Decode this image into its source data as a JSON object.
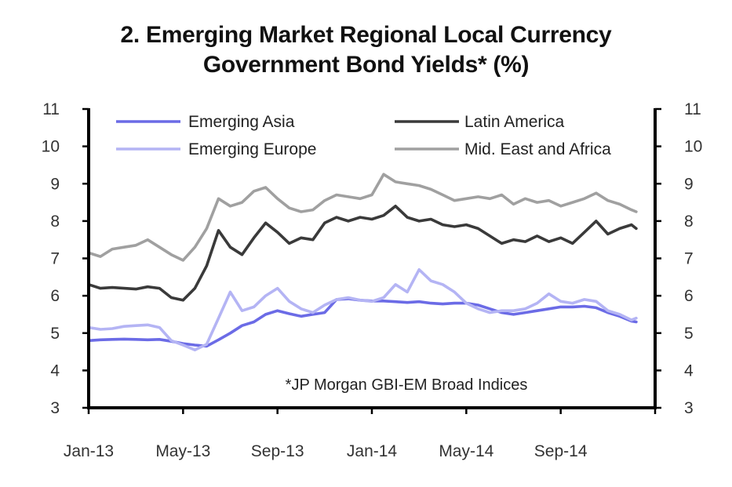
{
  "title_line1": "2. Emerging Market Regional Local Currency",
  "title_line2": "Government Bond Yields* (%)",
  "chart_data": {
    "type": "line",
    "title": "2. Emerging Market Regional Local Currency Government Bond Yields* (%)",
    "xlabel": "",
    "ylabel": "%",
    "ylim": [
      3,
      11
    ],
    "yticks": [
      3,
      4,
      5,
      6,
      7,
      8,
      9,
      10,
      11
    ],
    "ytick_labels": [
      "3",
      "4",
      "5",
      "6",
      "7",
      "8",
      "9",
      "10",
      "11"
    ],
    "x_unit": "months since Jan-13",
    "xlim": [
      0,
      24
    ],
    "xticks": [
      0,
      4,
      8,
      12,
      16,
      20,
      24
    ],
    "xtick_labels": [
      "Jan-13",
      "May-13",
      "Sep-13",
      "Jan-14",
      "May-14",
      "Sep-14",
      ""
    ],
    "grid": false,
    "legend_position": "top",
    "annotation": "*JP Morgan GBI-EM Broad Indices",
    "x": [
      0,
      0.5,
      1,
      1.5,
      2,
      2.5,
      3,
      3.5,
      4,
      4.5,
      5,
      5.5,
      6,
      6.5,
      7,
      7.5,
      8,
      8.5,
      9,
      9.5,
      10,
      10.5,
      11,
      11.5,
      12,
      12.5,
      13,
      13.5,
      14,
      14.5,
      15,
      15.5,
      16,
      16.5,
      17,
      17.5,
      18,
      18.5,
      19,
      19.5,
      20,
      20.5,
      21,
      21.5,
      22,
      22.5,
      23,
      23.2
    ],
    "series": [
      {
        "name": "Emerging Asia",
        "color": "#6b6be6",
        "values": [
          4.8,
          4.82,
          4.83,
          4.84,
          4.83,
          4.82,
          4.83,
          4.78,
          4.72,
          4.68,
          4.65,
          4.82,
          5.0,
          5.2,
          5.3,
          5.5,
          5.6,
          5.52,
          5.45,
          5.5,
          5.55,
          5.9,
          5.92,
          5.88,
          5.86,
          5.86,
          5.84,
          5.82,
          5.84,
          5.8,
          5.78,
          5.8,
          5.8,
          5.75,
          5.65,
          5.55,
          5.5,
          5.55,
          5.6,
          5.65,
          5.7,
          5.7,
          5.72,
          5.68,
          5.55,
          5.45,
          5.32,
          5.3
        ]
      },
      {
        "name": "Latin America",
        "color": "#3a3a3a",
        "values": [
          6.3,
          6.2,
          6.22,
          6.2,
          6.18,
          6.24,
          6.2,
          5.95,
          5.88,
          6.2,
          6.8,
          7.75,
          7.3,
          7.1,
          7.55,
          7.95,
          7.7,
          7.4,
          7.55,
          7.5,
          7.95,
          8.1,
          8.0,
          8.1,
          8.05,
          8.15,
          8.4,
          8.1,
          8.0,
          8.05,
          7.9,
          7.85,
          7.9,
          7.8,
          7.6,
          7.4,
          7.5,
          7.45,
          7.6,
          7.45,
          7.55,
          7.4,
          7.7,
          8.0,
          7.65,
          7.8,
          7.9,
          7.8
        ]
      },
      {
        "name": "Emerging Europe",
        "color": "#b4b4f4",
        "values": [
          5.15,
          5.1,
          5.12,
          5.18,
          5.2,
          5.22,
          5.15,
          4.8,
          4.68,
          4.55,
          4.7,
          5.4,
          6.1,
          5.6,
          5.7,
          6.0,
          6.2,
          5.85,
          5.65,
          5.55,
          5.75,
          5.9,
          5.95,
          5.88,
          5.85,
          5.95,
          6.3,
          6.1,
          6.7,
          6.4,
          6.3,
          6.1,
          5.8,
          5.65,
          5.55,
          5.6,
          5.6,
          5.65,
          5.8,
          6.05,
          5.85,
          5.8,
          5.9,
          5.85,
          5.6,
          5.5,
          5.35,
          5.4
        ]
      },
      {
        "name": "Mid. East and Africa",
        "color": "#a0a0a0",
        "values": [
          7.15,
          7.05,
          7.25,
          7.3,
          7.35,
          7.5,
          7.3,
          7.1,
          6.95,
          7.3,
          7.8,
          8.6,
          8.4,
          8.5,
          8.8,
          8.9,
          8.6,
          8.35,
          8.25,
          8.3,
          8.55,
          8.7,
          8.65,
          8.6,
          8.7,
          9.25,
          9.05,
          9.0,
          8.95,
          8.85,
          8.7,
          8.55,
          8.6,
          8.65,
          8.6,
          8.7,
          8.45,
          8.6,
          8.5,
          8.55,
          8.4,
          8.5,
          8.6,
          8.75,
          8.55,
          8.45,
          8.3,
          8.25
        ]
      }
    ]
  }
}
